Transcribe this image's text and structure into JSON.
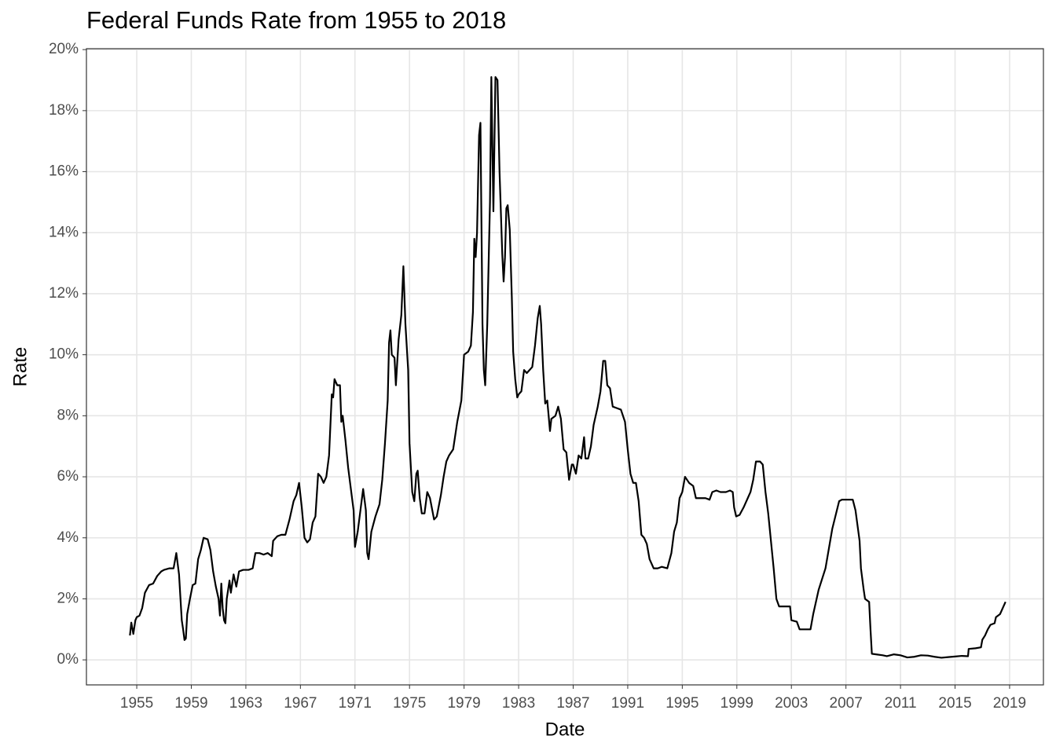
{
  "chart_data": {
    "type": "line",
    "title": "Federal Funds Rate from 1955 to 2018",
    "x_label": "Date",
    "y_label": "Rate",
    "color": "#000000",
    "grid": true,
    "xlim": [
      1951.31,
      2021.48
    ],
    "ylim": [
      -0.82,
      20.03
    ],
    "xticks": [
      1955,
      1959,
      1963,
      1967,
      1971,
      1975,
      1979,
      1983,
      1987,
      1991,
      1995,
      1999,
      2003,
      2007,
      2011,
      2015,
      2019
    ],
    "yticks": [
      {
        "value": 0,
        "label": "0%"
      },
      {
        "value": 2,
        "label": "2%"
      },
      {
        "value": 4,
        "label": "4%"
      },
      {
        "value": 6,
        "label": "6%"
      },
      {
        "value": 8,
        "label": "8%"
      },
      {
        "value": 10,
        "label": "10%"
      },
      {
        "value": 12,
        "label": "12%"
      },
      {
        "value": 14,
        "label": "14%"
      },
      {
        "value": 16,
        "label": "16%"
      },
      {
        "value": 18,
        "label": "18%"
      },
      {
        "value": 20,
        "label": "20%"
      }
    ],
    "x": [
      1954.5,
      1954.6,
      1954.75,
      1954.9,
      1955.0,
      1955.2,
      1955.4,
      1955.6,
      1955.9,
      1956.2,
      1956.5,
      1956.8,
      1957.0,
      1957.4,
      1957.7,
      1957.9,
      1958.1,
      1958.3,
      1958.4,
      1958.5,
      1958.6,
      1958.7,
      1958.9,
      1959.1,
      1959.3,
      1959.5,
      1959.7,
      1959.9,
      1960.2,
      1960.4,
      1960.6,
      1960.8,
      1961.0,
      1961.1,
      1961.2,
      1961.3,
      1961.4,
      1961.5,
      1961.6,
      1961.8,
      1961.9,
      1962.1,
      1962.3,
      1962.5,
      1962.8,
      1963.2,
      1963.5,
      1963.7,
      1964.0,
      1964.3,
      1964.6,
      1964.9,
      1965.0,
      1965.3,
      1965.6,
      1965.9,
      1966.2,
      1966.5,
      1966.7,
      1966.9,
      1967.1,
      1967.3,
      1967.5,
      1967.7,
      1967.9,
      1968.1,
      1968.3,
      1968.5,
      1968.7,
      1968.9,
      1969.1,
      1969.3,
      1969.4,
      1969.5,
      1969.7,
      1969.9,
      1970.0,
      1970.1,
      1970.3,
      1970.5,
      1970.7,
      1970.9,
      1971.0,
      1971.2,
      1971.4,
      1971.6,
      1971.8,
      1971.9,
      1972.0,
      1972.2,
      1972.5,
      1972.8,
      1973.0,
      1973.2,
      1973.4,
      1973.5,
      1973.6,
      1973.7,
      1973.9,
      1974.0,
      1974.2,
      1974.4,
      1974.55,
      1974.7,
      1974.9,
      1975.0,
      1975.2,
      1975.35,
      1975.5,
      1975.6,
      1975.75,
      1975.9,
      1976.1,
      1976.3,
      1976.5,
      1976.8,
      1977.0,
      1977.3,
      1977.5,
      1977.7,
      1977.9,
      1978.2,
      1978.5,
      1978.8,
      1979.0,
      1979.3,
      1979.5,
      1979.65,
      1979.75,
      1979.85,
      1979.95,
      1980.1,
      1980.2,
      1980.35,
      1980.45,
      1980.55,
      1980.7,
      1980.9,
      1981.0,
      1981.15,
      1981.3,
      1981.45,
      1981.6,
      1981.8,
      1981.9,
      1982.0,
      1982.1,
      1982.2,
      1982.35,
      1982.5,
      1982.6,
      1982.75,
      1982.9,
      1983.0,
      1983.2,
      1983.4,
      1983.6,
      1983.8,
      1984.0,
      1984.2,
      1984.4,
      1984.55,
      1984.65,
      1984.8,
      1984.95,
      1985.1,
      1985.3,
      1985.4,
      1985.7,
      1985.9,
      1986.1,
      1986.3,
      1986.5,
      1986.7,
      1986.9,
      1987.0,
      1987.2,
      1987.4,
      1987.6,
      1987.8,
      1987.9,
      1988.1,
      1988.3,
      1988.5,
      1988.8,
      1989.0,
      1989.2,
      1989.35,
      1989.5,
      1989.7,
      1989.9,
      1990.2,
      1990.5,
      1990.8,
      1991.0,
      1991.2,
      1991.4,
      1991.6,
      1991.8,
      1992.0,
      1992.2,
      1992.4,
      1992.6,
      1992.9,
      1993.2,
      1993.5,
      1993.9,
      1994.2,
      1994.4,
      1994.6,
      1994.8,
      1995.0,
      1995.2,
      1995.5,
      1995.8,
      1996.0,
      1996.3,
      1996.7,
      1997.0,
      1997.2,
      1997.5,
      1997.8,
      1998.2,
      1998.5,
      1998.7,
      1998.8,
      1998.95,
      1999.2,
      1999.5,
      1999.8,
      2000.0,
      2000.2,
      2000.4,
      2000.7,
      2000.9,
      2001.1,
      2001.3,
      2001.5,
      2001.7,
      2001.9,
      2002.1,
      2002.5,
      2002.9,
      2003.0,
      2003.4,
      2003.6,
      2004.0,
      2004.4,
      2004.6,
      2005.0,
      2005.5,
      2006.0,
      2006.5,
      2006.7,
      2007.5,
      2007.7,
      2008.0,
      2008.1,
      2008.3,
      2008.4,
      2008.7,
      2008.8,
      2008.9,
      2009.2,
      2009.7,
      2010.0,
      2010.5,
      2011.0,
      2011.5,
      2012.0,
      2012.5,
      2013.0,
      2013.5,
      2014.0,
      2014.5,
      2015.0,
      2015.5,
      2015.95,
      2016.0,
      2016.5,
      2016.9,
      2017.0,
      2017.2,
      2017.4,
      2017.6,
      2017.9,
      2018.0,
      2018.3,
      2018.5,
      2018.7
    ],
    "values": [
      0.8,
      1.22,
      0.85,
      1.3,
      1.4,
      1.45,
      1.7,
      2.2,
      2.45,
      2.5,
      2.75,
      2.9,
      2.95,
      3.0,
      3.0,
      3.5,
      2.8,
      1.3,
      1.0,
      0.65,
      0.7,
      1.5,
      2.0,
      2.45,
      2.5,
      3.3,
      3.6,
      4.0,
      3.95,
      3.6,
      2.9,
      2.4,
      2.0,
      1.45,
      2.5,
      1.7,
      1.3,
      1.2,
      2.0,
      2.6,
      2.2,
      2.8,
      2.4,
      2.9,
      2.95,
      2.95,
      3.0,
      3.5,
      3.5,
      3.45,
      3.5,
      3.4,
      3.9,
      4.05,
      4.1,
      4.1,
      4.6,
      5.2,
      5.4,
      5.8,
      5.0,
      4.0,
      3.85,
      3.95,
      4.5,
      4.7,
      6.1,
      6.0,
      5.8,
      6.0,
      6.7,
      8.7,
      8.6,
      9.2,
      9.0,
      9.0,
      7.8,
      8.0,
      7.2,
      6.3,
      5.6,
      4.9,
      3.7,
      4.2,
      4.9,
      5.6,
      4.9,
      3.5,
      3.3,
      4.2,
      4.7,
      5.1,
      5.9,
      7.1,
      8.5,
      10.4,
      10.8,
      10.0,
      9.9,
      9.0,
      10.5,
      11.3,
      12.9,
      11.0,
      9.5,
      7.1,
      5.5,
      5.2,
      6.1,
      6.2,
      5.3,
      4.8,
      4.8,
      5.5,
      5.3,
      4.6,
      4.7,
      5.4,
      6.0,
      6.5,
      6.7,
      6.9,
      7.8,
      8.5,
      10.0,
      10.1,
      10.3,
      11.4,
      13.8,
      13.2,
      14.0,
      17.2,
      17.6,
      11.0,
      9.5,
      9.0,
      11.0,
      15.0,
      19.1,
      14.7,
      19.1,
      19.0,
      16.0,
      13.3,
      12.4,
      13.2,
      14.8,
      14.9,
      14.1,
      11.9,
      10.1,
      9.2,
      8.6,
      8.7,
      8.8,
      9.5,
      9.4,
      9.5,
      9.6,
      10.3,
      11.2,
      11.6,
      11.0,
      9.5,
      8.4,
      8.5,
      7.5,
      7.9,
      8.0,
      8.3,
      7.9,
      6.9,
      6.8,
      5.9,
      6.4,
      6.4,
      6.1,
      6.7,
      6.6,
      7.3,
      6.6,
      6.6,
      7.0,
      7.7,
      8.3,
      8.8,
      9.8,
      9.8,
      9.0,
      8.9,
      8.3,
      8.25,
      8.2,
      7.8,
      6.9,
      6.1,
      5.8,
      5.8,
      5.2,
      4.1,
      4.0,
      3.8,
      3.3,
      3.0,
      3.0,
      3.05,
      3.0,
      3.5,
      4.2,
      4.5,
      5.3,
      5.5,
      6.0,
      5.8,
      5.7,
      5.3,
      5.3,
      5.3,
      5.25,
      5.5,
      5.55,
      5.5,
      5.5,
      5.55,
      5.5,
      5.0,
      4.7,
      4.75,
      5.0,
      5.3,
      5.5,
      5.9,
      6.5,
      6.5,
      6.4,
      5.5,
      4.8,
      3.9,
      3.0,
      2.0,
      1.75,
      1.75,
      1.75,
      1.3,
      1.25,
      1.0,
      1.0,
      1.0,
      1.5,
      2.3,
      3.0,
      4.3,
      5.2,
      5.25,
      5.25,
      4.9,
      3.9,
      3.0,
      2.3,
      2.0,
      1.9,
      1.0,
      0.2,
      0.18,
      0.15,
      0.12,
      0.18,
      0.15,
      0.08,
      0.1,
      0.15,
      0.14,
      0.1,
      0.07,
      0.09,
      0.11,
      0.13,
      0.12,
      0.36,
      0.38,
      0.41,
      0.66,
      0.8,
      1.0,
      1.15,
      1.2,
      1.4,
      1.5,
      1.7,
      1.9
    ]
  }
}
